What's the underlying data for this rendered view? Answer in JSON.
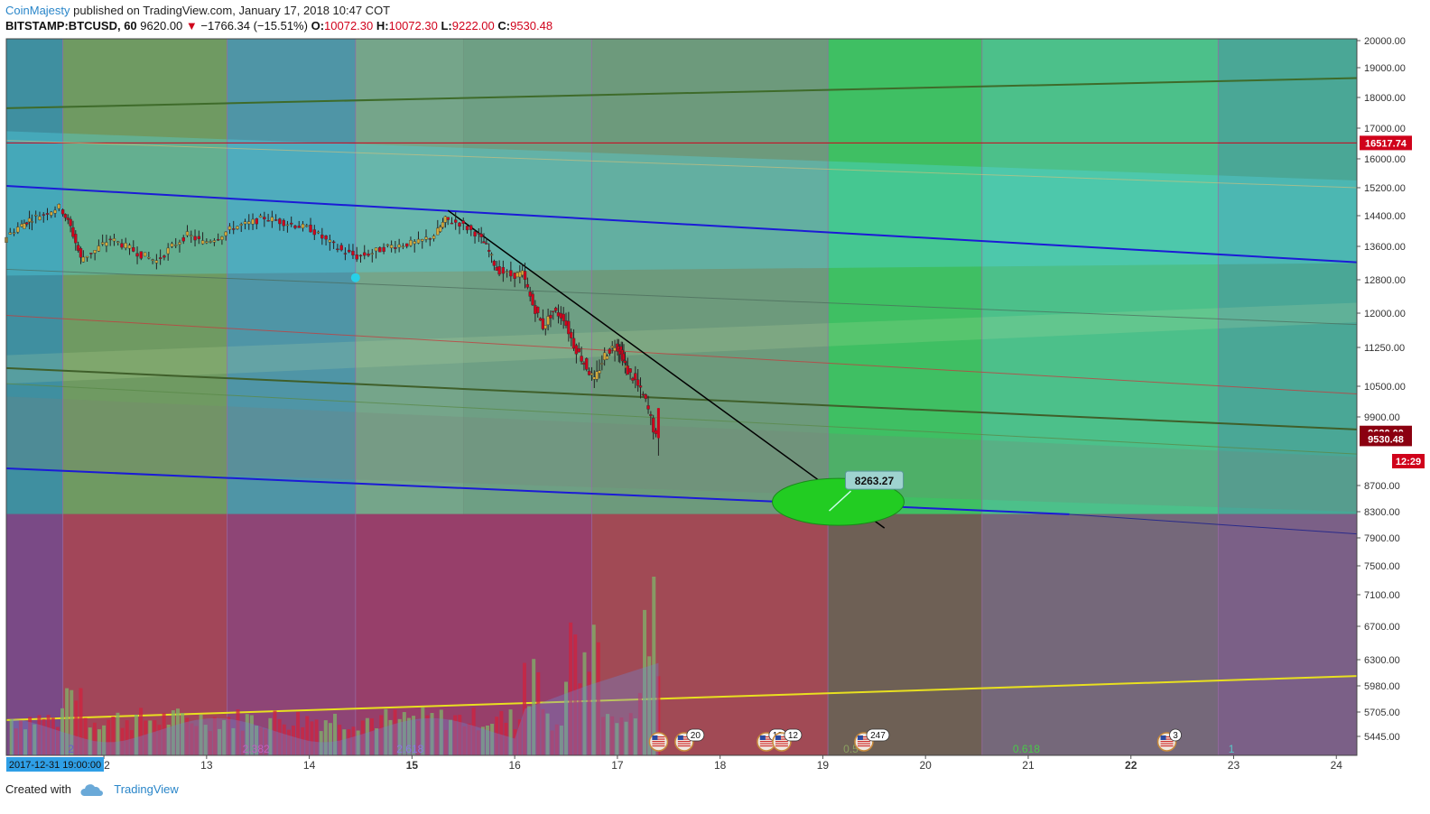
{
  "header": {
    "author": "CoinMajesty",
    "published_text": " published on TradingView.com, January 17, 2018 10:47 COT",
    "symbol": "BITSTAMP:BTCUSD, 60",
    "last": "9620.00",
    "change": "−1766.34 (−15.51%)",
    "open_label": "O:",
    "open": "10072.30",
    "high_label": "H:",
    "high": "10072.30",
    "low_label": "L:",
    "low": "9222.00",
    "close_label": "C:",
    "close": "9530.48"
  },
  "footer": {
    "created_with": "Created with",
    "brand": "TradingView"
  },
  "colors": {
    "candle_down": "#d0021b",
    "candle_up": "#d4a93a",
    "blue_channel": "#1b1bd6",
    "target_ellipse": "#22cc22",
    "label_red": "#d0021b"
  },
  "chart_data": {
    "type": "candlestick",
    "symbol": "BITSTAMP:BTCUSD",
    "timeframe": "60",
    "y_axis": {
      "ticks": [
        5445,
        5705,
        5980,
        6300,
        6700,
        7100,
        7500,
        7900,
        8300,
        8700,
        9900,
        10500,
        11250,
        12000,
        12800,
        13600,
        14400,
        15200,
        16000,
        17000,
        18000,
        19000,
        20000
      ],
      "tick_labels": [
        "5445.00",
        "5705.00",
        "5980.00",
        "6300.00",
        "6700.00",
        "7100.00",
        "7500.00",
        "7900.00",
        "8300.00",
        "8700.00",
        "9900.00",
        "10500.00",
        "11250.00",
        "12000.00",
        "12800.00",
        "13600.00",
        "14400.00",
        "15200.00",
        "16000.00",
        "17000.00",
        "18000.00",
        "19000.00",
        "20000.00"
      ],
      "range": [
        5300,
        20100
      ]
    },
    "x_axis": {
      "first_label": "2017-12-31 19:00:00",
      "day_labels": [
        "12",
        "13",
        "14",
        "15",
        "16",
        "17",
        "18",
        "19",
        "20",
        "21",
        "22",
        "23",
        "24"
      ],
      "bold_labels": [
        "15",
        "22"
      ],
      "range_days": [
        11.05,
        24.2
      ]
    },
    "price_labels": [
      {
        "text": "16517.74",
        "value": 16517.74
      },
      {
        "text": "9620.00",
        "value": 9620.0
      },
      {
        "text": "9530.48",
        "value": 9530.48
      },
      {
        "text": "12:29"
      }
    ],
    "target": {
      "text": "8263.27",
      "value": 8263.27,
      "day": 19.15
    },
    "series_price": [
      [
        11.05,
        13780
      ],
      [
        11.2,
        14100
      ],
      [
        11.3,
        14300
      ],
      [
        11.45,
        14450
      ],
      [
        11.6,
        14650
      ],
      [
        11.7,
        14100
      ],
      [
        11.8,
        13300
      ],
      [
        11.95,
        13500
      ],
      [
        12.1,
        13800
      ],
      [
        12.25,
        13600
      ],
      [
        12.4,
        13400
      ],
      [
        12.55,
        13250
      ],
      [
        12.7,
        13600
      ],
      [
        12.85,
        13900
      ],
      [
        13.0,
        13700
      ],
      [
        13.15,
        13850
      ],
      [
        13.3,
        14100
      ],
      [
        13.45,
        14200
      ],
      [
        13.6,
        14350
      ],
      [
        13.75,
        14250
      ],
      [
        13.9,
        14150
      ],
      [
        14.05,
        14050
      ],
      [
        14.2,
        13750
      ],
      [
        14.35,
        13500
      ],
      [
        14.5,
        13350
      ],
      [
        14.65,
        13450
      ],
      [
        14.8,
        13600
      ],
      [
        14.95,
        13650
      ],
      [
        15.1,
        13700
      ],
      [
        15.25,
        13900
      ],
      [
        15.35,
        14300
      ],
      [
        15.5,
        14200
      ],
      [
        15.65,
        13950
      ],
      [
        15.75,
        13600
      ],
      [
        15.85,
        13050
      ],
      [
        16.0,
        12900
      ],
      [
        16.1,
        12950
      ],
      [
        16.2,
        12200
      ],
      [
        16.3,
        11700
      ],
      [
        16.4,
        12050
      ],
      [
        16.5,
        11900
      ],
      [
        16.6,
        11300
      ],
      [
        16.7,
        10950
      ],
      [
        16.8,
        10600
      ],
      [
        16.9,
        11100
      ],
      [
        17.0,
        11300
      ],
      [
        17.05,
        11150
      ],
      [
        17.1,
        10850
      ],
      [
        17.2,
        10600
      ],
      [
        17.3,
        10200
      ],
      [
        17.4,
        9530
      ]
    ],
    "volume_levels": {
      "y_units": "price axis",
      "max_spike": 7350
    },
    "annotations": [
      {
        "text": "2"
      },
      {
        "text": "2.382"
      },
      {
        "text": "2.618"
      },
      {
        "text": "0.5"
      },
      {
        "text": "0.618"
      },
      {
        "text": "1"
      }
    ],
    "event_badges": [
      {
        "day": 17.4,
        "count": ""
      },
      {
        "day": 17.65,
        "count": "20"
      },
      {
        "day": 18.45,
        "count": "13"
      },
      {
        "day": 18.6,
        "count": "12"
      },
      {
        "day": 19.4,
        "count": "247"
      },
      {
        "day": 22.35,
        "count": "3"
      }
    ],
    "lines": {
      "blue_upper": [
        [
          11.05,
          15250
        ],
        [
          24.2,
          13220
        ]
      ],
      "blue_lower": [
        [
          11.05,
          9000
        ],
        [
          21.4,
          8260
        ]
      ],
      "blue_lower_ext": [
        [
          21.4,
          8260
        ],
        [
          24.2,
          7960
        ]
      ],
      "black_trend": [
        [
          15.35,
          14550
        ],
        [
          19.6,
          8050
        ]
      ],
      "dark_green_top": [
        [
          11.05,
          17650
        ],
        [
          24.2,
          18650
        ]
      ],
      "dark_green_mid": [
        [
          11.05,
          10850
        ],
        [
          24.2,
          9680
        ]
      ],
      "thin_red": [
        [
          11.05,
          11950
        ],
        [
          24.2,
          10350
        ]
      ],
      "yellow": [
        [
          11.05,
          5620
        ],
        [
          24.2,
          6100
        ]
      ],
      "horizontal_red": 16517.74
    },
    "grid": false,
    "legend": "none"
  }
}
